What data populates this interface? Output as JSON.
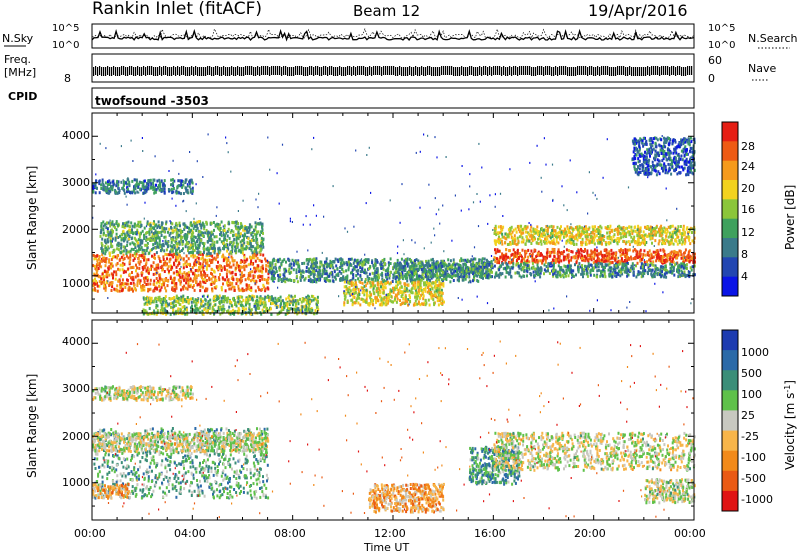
{
  "header": {
    "title": "Rankin Inlet (fitACF)",
    "beam": "Beam 12",
    "date": "19/Apr/2016"
  },
  "nsky_panel": {
    "left_label": "N.Sky",
    "right_label": "N.Search",
    "left_ticks": [
      "10^5",
      "10^0"
    ],
    "right_ticks": [
      "10^5",
      "10^0"
    ]
  },
  "freq_panel": {
    "left_label_1": "Freq.",
    "left_label_2": "[MHz]",
    "right_label": "Nave",
    "left_ticks": [
      "8"
    ],
    "right_ticks": [
      "60",
      "0"
    ]
  },
  "cpid": {
    "label": "CPID",
    "value": "twofsound -3503"
  },
  "power_panel": {
    "ylabel": "Slant Range [km]",
    "yticks": [
      "1000",
      "2000",
      "3000",
      "4000"
    ],
    "colorbar_label": "Power [dB]",
    "colorbar_ticks": [
      "4",
      "8",
      "12",
      "16",
      "20",
      "24",
      "28"
    ],
    "colors": [
      "#0a14e6",
      "#2246b2",
      "#3a7a8a",
      "#3fa15e",
      "#8bc63a",
      "#f2d21e",
      "#f59a1c",
      "#ee5a14",
      "#e61e14"
    ]
  },
  "velocity_panel": {
    "ylabel": "Slant Range [km]",
    "yticks": [
      "1000",
      "2000",
      "3000",
      "4000"
    ],
    "colorbar_label": "Velocity [m s",
    "colorbar_label_sup": "-1",
    "colorbar_ticks": [
      "1000",
      "500",
      "100",
      "25",
      "-25",
      "-100",
      "-500",
      "-1000"
    ],
    "colors": [
      "#1d3bb0",
      "#2b6aa8",
      "#3b8e78",
      "#5fc14a",
      "#c8c8c0",
      "#f7b54a",
      "#f28a1a",
      "#ea5a14",
      "#e01414"
    ]
  },
  "xaxis": {
    "label": "Time UT",
    "ticks": [
      "00:00",
      "04:00",
      "08:00",
      "12:00",
      "16:00",
      "20:00",
      "00:00"
    ]
  },
  "chart_data": [
    {
      "type": "heatmap",
      "title": "Rankin Inlet (fitACF) Beam 12 19/Apr/2016",
      "quantity": "Power [dB]",
      "xlabel": "Time UT",
      "ylabel": "Slant Range [km]",
      "xlim_hours": [
        0,
        24
      ],
      "ylim_km": [
        200,
        4500
      ],
      "clim": [
        0,
        30
      ],
      "regions": [
        {
          "t0": 0.0,
          "t1": 7.0,
          "r0": 700,
          "r1": 1500,
          "level": 24
        },
        {
          "t0": 0.3,
          "t1": 6.8,
          "r0": 1500,
          "r1": 2200,
          "level": 12
        },
        {
          "t0": 0.0,
          "t1": 4.0,
          "r0": 2800,
          "r1": 3100,
          "level": 8
        },
        {
          "t0": 2.0,
          "t1": 9.0,
          "r0": 200,
          "r1": 600,
          "level": 14
        },
        {
          "t0": 7.0,
          "t1": 16.0,
          "r0": 900,
          "r1": 1400,
          "level": 10
        },
        {
          "t0": 10.0,
          "t1": 14.0,
          "r0": 400,
          "r1": 900,
          "level": 18
        },
        {
          "t0": 16.0,
          "t1": 24.0,
          "r0": 1300,
          "r1": 1600,
          "level": 26
        },
        {
          "t0": 16.0,
          "t1": 24.0,
          "r0": 1700,
          "r1": 2100,
          "level": 18
        },
        {
          "t0": 12.0,
          "t1": 24.0,
          "r0": 1000,
          "r1": 1300,
          "level": 10
        },
        {
          "t0": 21.5,
          "t1": 24.0,
          "r0": 3200,
          "r1": 4000,
          "level": 6
        }
      ]
    },
    {
      "type": "heatmap",
      "quantity": "Velocity [m s^-1]",
      "xlabel": "Time UT",
      "ylabel": "Slant Range [km]",
      "xlim_hours": [
        0,
        24
      ],
      "ylim_km": [
        200,
        4500
      ],
      "clim": [
        -1000,
        1000
      ],
      "regions": [
        {
          "t0": 0.0,
          "t1": 7.0,
          "r0": 700,
          "r1": 2200,
          "level": 300
        },
        {
          "t0": 0.0,
          "t1": 1.5,
          "r0": 700,
          "r1": 1000,
          "level": -300
        },
        {
          "t0": 0.0,
          "t1": 4.0,
          "r0": 2800,
          "r1": 3100,
          "level": 0
        },
        {
          "t0": 0.0,
          "t1": 7.0,
          "r0": 1700,
          "r1": 2100,
          "level": 0
        },
        {
          "t0": 11.0,
          "t1": 14.0,
          "r0": 400,
          "r1": 1000,
          "level": -300
        },
        {
          "t0": 15.0,
          "t1": 17.0,
          "r0": 1000,
          "r1": 1800,
          "level": 400
        },
        {
          "t0": 16.0,
          "t1": 24.0,
          "r0": 1300,
          "r1": 2100,
          "level": 0
        },
        {
          "t0": 22.0,
          "t1": 24.0,
          "r0": 600,
          "r1": 1100,
          "level": 50
        }
      ]
    }
  ]
}
